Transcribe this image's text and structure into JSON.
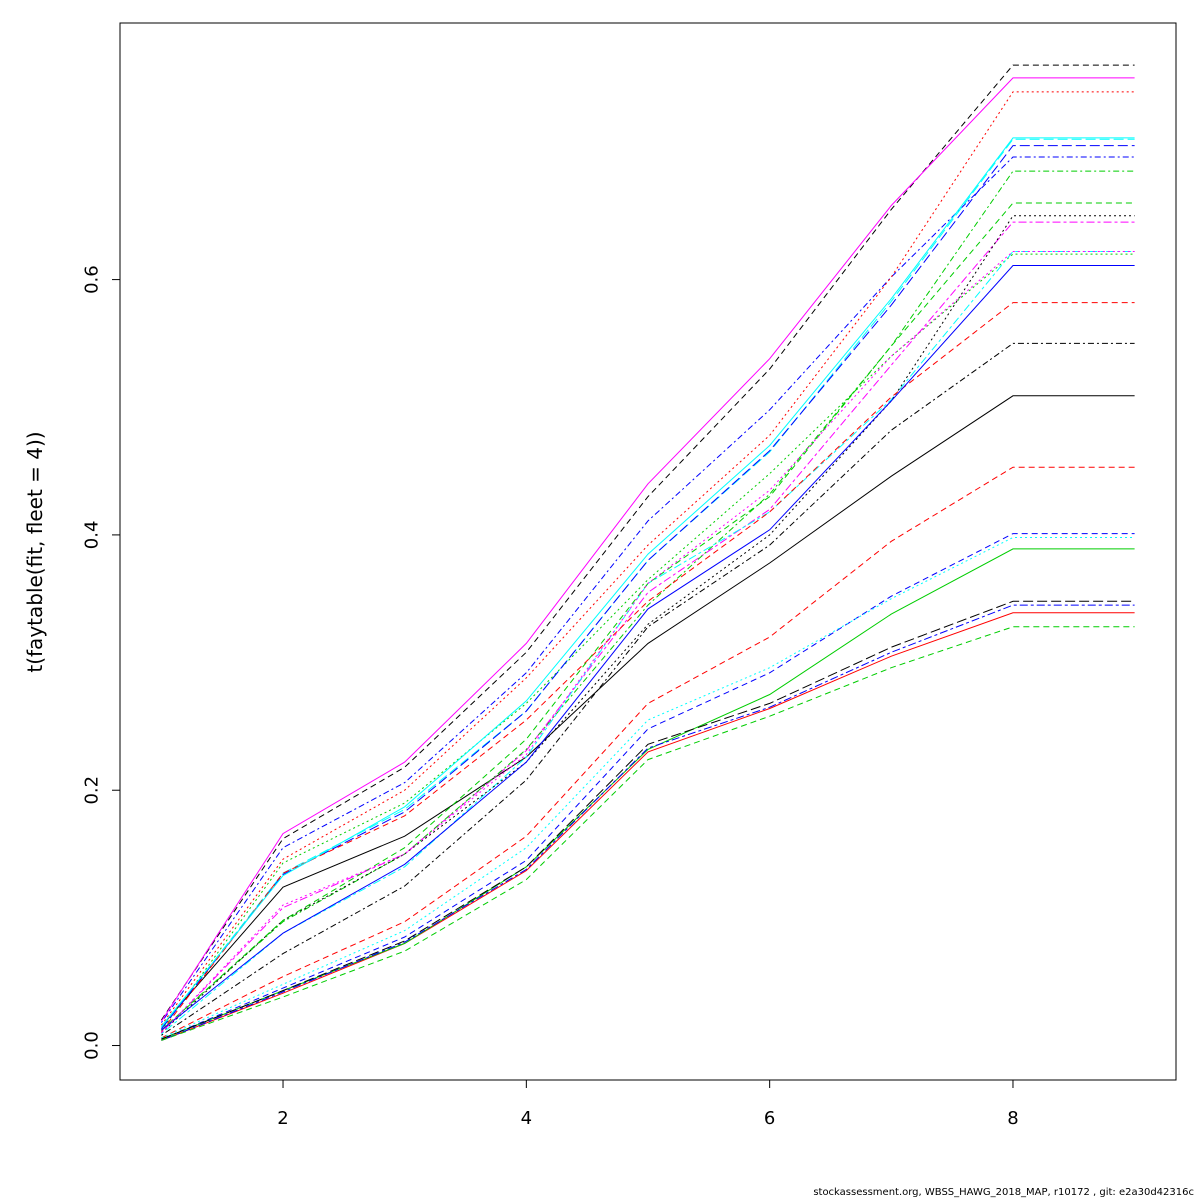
{
  "chart_data": {
    "type": "line",
    "title": "",
    "xlabel": "",
    "ylabel": "t(faytable(fit, fleet = 4))",
    "x": [
      1,
      2,
      3,
      4,
      5,
      6,
      7,
      8,
      9
    ],
    "xlim": [
      0.66,
      9.34
    ],
    "ylim": [
      -0.027,
      0.801
    ],
    "xticks": [
      2,
      4,
      6,
      8
    ],
    "yticks": [
      0.0,
      0.2,
      0.4,
      0.6
    ],
    "ytick_labels": [
      "0.0",
      "0.2",
      "0.4",
      "0.6"
    ],
    "grid": false,
    "legend": "none",
    "series": [
      {
        "color": "#000000",
        "lty": "solid",
        "values": [
          0.015,
          0.124,
          0.164,
          0.226,
          0.315,
          0.378,
          0.446,
          0.509,
          0.509
        ]
      },
      {
        "color": "#ff0000",
        "lty": "dashed",
        "values": [
          0.006,
          0.054,
          0.097,
          0.164,
          0.268,
          0.32,
          0.395,
          0.453,
          0.453
        ]
      },
      {
        "color": "#00cd00",
        "lty": "dotted",
        "values": [
          0.012,
          0.143,
          0.19,
          0.268,
          0.365,
          0.448,
          0.54,
          0.62,
          0.62
        ]
      },
      {
        "color": "#0000ff",
        "lty": "dotdash",
        "values": [
          0.018,
          0.155,
          0.206,
          0.292,
          0.411,
          0.498,
          0.602,
          0.696,
          0.696
        ]
      },
      {
        "color": "#00ffff",
        "lty": "longdash",
        "values": [
          0.014,
          0.135,
          0.185,
          0.262,
          0.38,
          0.465,
          0.583,
          0.71,
          0.71
        ]
      },
      {
        "color": "#ff00ff",
        "lty": "twodash",
        "values": [
          0.01,
          0.108,
          0.15,
          0.231,
          0.355,
          0.42,
          0.533,
          0.645,
          0.645
        ]
      },
      {
        "color": "#000000",
        "lty": "dashed",
        "values": [
          0.02,
          0.162,
          0.218,
          0.308,
          0.43,
          0.53,
          0.655,
          0.768,
          0.768
        ]
      },
      {
        "color": "#ff0000",
        "lty": "dotted",
        "values": [
          0.016,
          0.146,
          0.2,
          0.288,
          0.392,
          0.478,
          0.602,
          0.747,
          0.747
        ]
      },
      {
        "color": "#00cd00",
        "lty": "dotdash",
        "values": [
          0.012,
          0.097,
          0.15,
          0.232,
          0.345,
          0.432,
          0.548,
          0.685,
          0.685
        ]
      },
      {
        "color": "#0000ff",
        "lty": "longdash",
        "values": [
          0.013,
          0.134,
          0.183,
          0.262,
          0.38,
          0.466,
          0.58,
          0.705,
          0.705
        ]
      },
      {
        "color": "#00ffff",
        "lty": "twodash",
        "values": [
          0.009,
          0.088,
          0.14,
          0.226,
          0.362,
          0.418,
          0.506,
          0.622,
          0.622
        ]
      },
      {
        "color": "#ff00ff",
        "lty": "solid",
        "values": [
          0.019,
          0.166,
          0.222,
          0.315,
          0.44,
          0.538,
          0.658,
          0.758,
          0.758
        ]
      },
      {
        "color": "#000000",
        "lty": "dotted",
        "values": [
          0.01,
          0.098,
          0.15,
          0.222,
          0.33,
          0.4,
          0.505,
          0.65,
          0.65
        ]
      },
      {
        "color": "#ff0000",
        "lty": "dashed",
        "values": [
          0.011,
          0.135,
          0.18,
          0.255,
          0.348,
          0.418,
          0.508,
          0.582,
          0.582
        ]
      },
      {
        "color": "#00cd00",
        "lty": "dashed",
        "values": [
          0.012,
          0.098,
          0.155,
          0.24,
          0.362,
          0.43,
          0.548,
          0.66,
          0.66
        ]
      },
      {
        "color": "#0000ff",
        "lty": "dashed",
        "values": [
          0.005,
          0.045,
          0.085,
          0.145,
          0.248,
          0.292,
          0.352,
          0.401,
          0.401
        ]
      },
      {
        "color": "#0000ff",
        "lty": "solid",
        "values": [
          0.012,
          0.088,
          0.142,
          0.222,
          0.342,
          0.404,
          0.505,
          0.611,
          0.611
        ]
      },
      {
        "color": "#00ffff",
        "lty": "solid",
        "values": [
          0.015,
          0.133,
          0.187,
          0.27,
          0.385,
          0.47,
          0.585,
          0.711,
          0.711
        ]
      },
      {
        "color": "#000000",
        "lty": "dotdash",
        "values": [
          0.008,
          0.072,
          0.125,
          0.208,
          0.328,
          0.392,
          0.482,
          0.55,
          0.55
        ]
      },
      {
        "color": "#00ffff",
        "lty": "dotted",
        "values": [
          0.006,
          0.048,
          0.09,
          0.155,
          0.255,
          0.296,
          0.35,
          0.398,
          0.398
        ]
      },
      {
        "color": "#ff00ff",
        "lty": "dotted",
        "values": [
          0.01,
          0.11,
          0.15,
          0.228,
          0.362,
          0.435,
          0.54,
          0.622,
          0.622
        ]
      },
      {
        "color": "#ff0000",
        "lty": "solid",
        "values": [
          0.004,
          0.041,
          0.08,
          0.137,
          0.23,
          0.264,
          0.305,
          0.339,
          0.339
        ]
      },
      {
        "color": "#00cd00",
        "lty": "solid",
        "values": [
          0.005,
          0.043,
          0.08,
          0.14,
          0.232,
          0.275,
          0.338,
          0.389,
          0.389
        ]
      },
      {
        "color": "#000000",
        "lty": "longdash",
        "values": [
          0.005,
          0.043,
          0.082,
          0.14,
          0.236,
          0.268,
          0.312,
          0.348,
          0.348
        ]
      },
      {
        "color": "#0000ff",
        "lty": "twodash",
        "values": [
          0.004,
          0.042,
          0.081,
          0.138,
          0.233,
          0.265,
          0.308,
          0.345,
          0.345
        ]
      },
      {
        "color": "#00cd00",
        "lty": "dashed",
        "values": [
          0.004,
          0.038,
          0.074,
          0.13,
          0.224,
          0.258,
          0.296,
          0.328,
          0.328
        ]
      }
    ]
  },
  "footer": {
    "text": "stockassessment.org, WBSS_HAWG_2018_MAP, r10172 , git: e2a30d42316c"
  }
}
